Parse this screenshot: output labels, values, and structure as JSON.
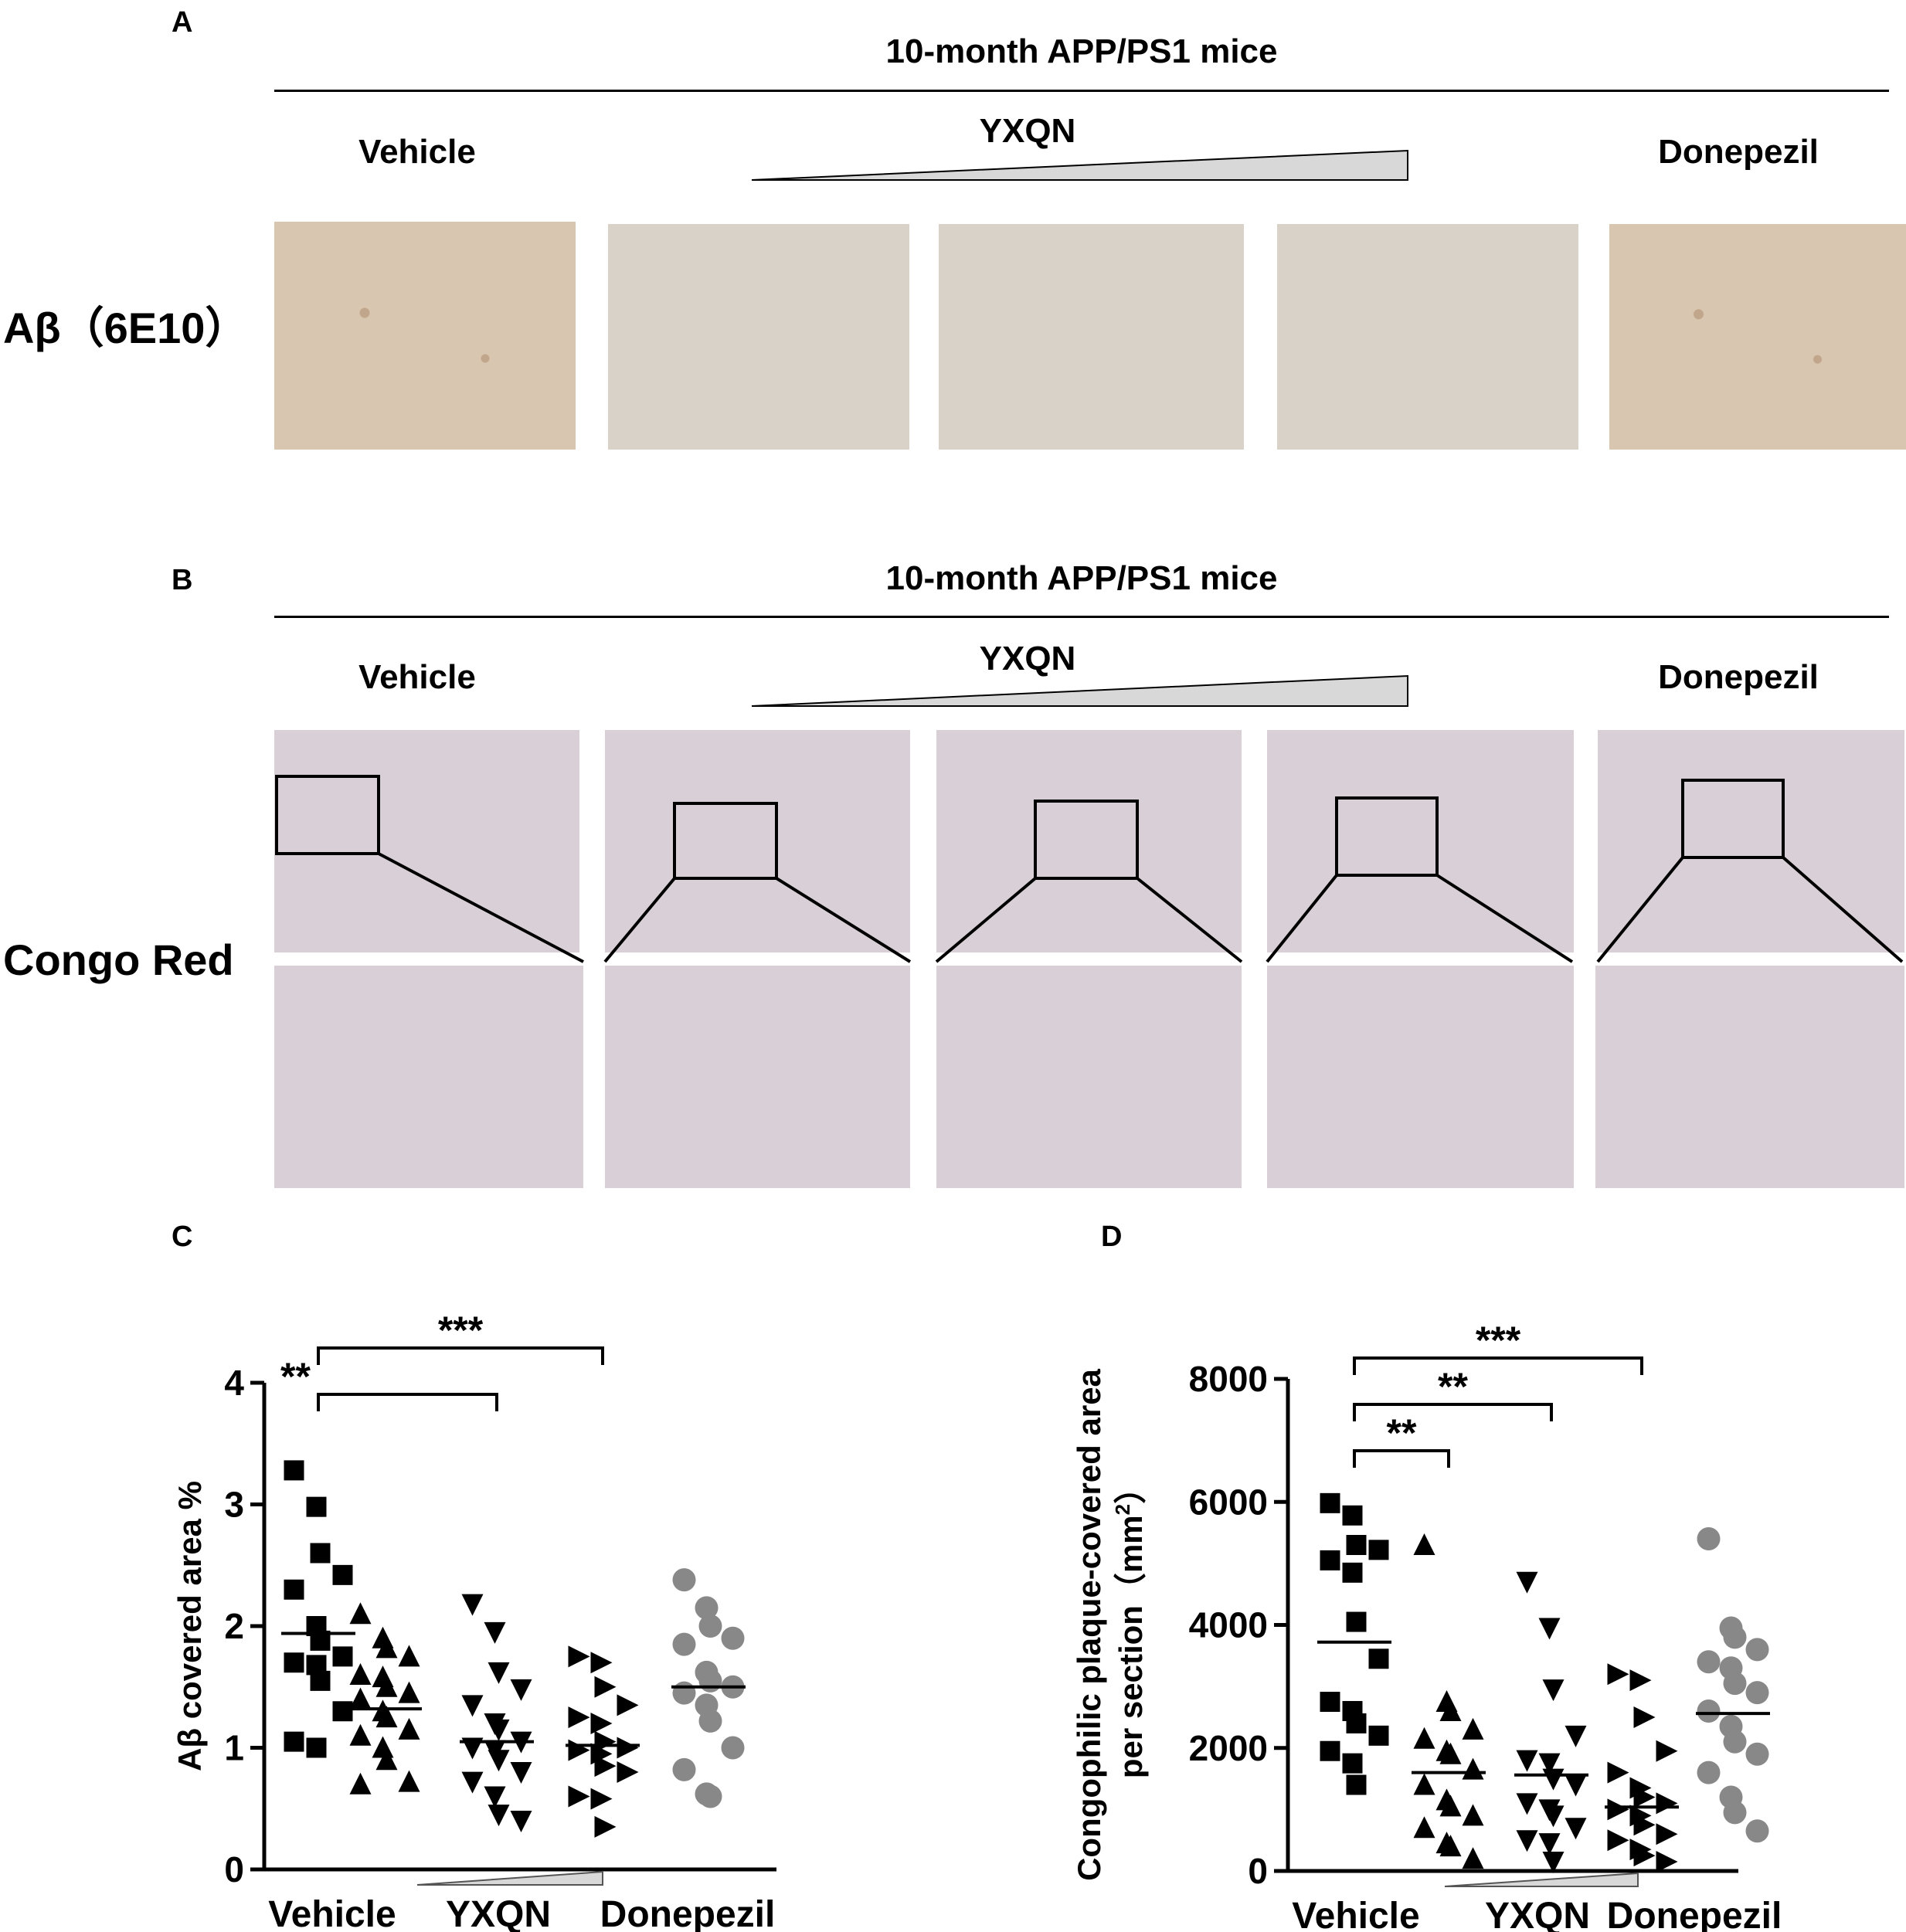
{
  "panel_a": {
    "letter": "A",
    "header": "10-month APP/PS1 mice",
    "groups": {
      "vehicle": "Vehicle",
      "yxqn": "YXQN",
      "donepezil": "Donepezil"
    },
    "row_label": "Aβ（6E10）"
  },
  "panel_b": {
    "letter": "B",
    "header": "10-month APP/PS1 mice",
    "groups": {
      "vehicle": "Vehicle",
      "yxqn": "YXQN",
      "donepezil": "Donepezil"
    },
    "row_label": "Congo Red"
  },
  "chart_data": [
    {
      "letter": "C",
      "type": "scatter",
      "title": "",
      "ylabel": "Aβ covered area %",
      "xlabel": "",
      "categories": [
        "Vehicle",
        "YXQN",
        "YXQN",
        "YXQN",
        "Donepezil"
      ],
      "ylim": [
        0,
        4
      ],
      "yticks": [
        0,
        1,
        2,
        3,
        4
      ],
      "grid": false,
      "legend": "none",
      "colors": {
        "black": "#000000",
        "grey": "#888888"
      },
      "series": [
        {
          "marker": "square",
          "color": "#000000",
          "mean": 1.94,
          "values": [
            3.28,
            2.98,
            2.6,
            2.42,
            2.3,
            2.0,
            1.88,
            1.75,
            1.7,
            1.68,
            1.55,
            1.3,
            1.05,
            1.0
          ]
        },
        {
          "marker": "triangle-up",
          "color": "#000000",
          "mean": 1.32,
          "values": [
            2.1,
            1.9,
            1.82,
            1.75,
            1.6,
            1.58,
            1.5,
            1.45,
            1.4,
            1.3,
            1.25,
            1.15,
            1.1,
            1.0,
            0.9,
            0.72,
            0.7
          ]
        },
        {
          "marker": "triangle-down",
          "color": "#000000",
          "mean": 1.05,
          "values": [
            2.18,
            1.95,
            1.62,
            1.48,
            1.35,
            1.2,
            1.15,
            1.05,
            1.0,
            0.98,
            0.9,
            0.8,
            0.72,
            0.6,
            0.45,
            0.4
          ]
        },
        {
          "marker": "triangle-right",
          "color": "#000000",
          "mean": 1.02,
          "values": [
            1.75,
            1.7,
            1.5,
            1.35,
            1.25,
            1.2,
            1.05,
            1.0,
            0.98,
            0.95,
            0.85,
            0.8,
            0.6,
            0.58,
            0.35
          ]
        },
        {
          "marker": "circle",
          "color": "#888888",
          "mean": 1.5,
          "values": [
            2.38,
            2.15,
            2.0,
            1.9,
            1.85,
            1.62,
            1.55,
            1.5,
            1.45,
            1.35,
            1.22,
            1.0,
            0.82,
            0.62,
            0.6
          ]
        }
      ],
      "significance": [
        {
          "from": 0,
          "to": 3,
          "label": "***"
        },
        {
          "from": 0,
          "to": 2,
          "label": "**"
        }
      ]
    },
    {
      "letter": "D",
      "type": "scatter",
      "title": "",
      "ylabel": "Congophilic plaque-covered area per section（mm²）",
      "ylabel_line1": "Congophilic plaque-covered area",
      "ylabel_line2": "per section（mm",
      "ylabel_sup": "2",
      "ylabel_end": "）",
      "xlabel": "",
      "categories": [
        "Vehicle",
        "YXQN",
        "YXQN",
        "YXQN",
        "Donepezil"
      ],
      "ylim": [
        0,
        8000
      ],
      "yticks": [
        0,
        2000,
        4000,
        6000,
        8000
      ],
      "grid": false,
      "legend": "none",
      "colors": {
        "black": "#000000",
        "grey": "#888888"
      },
      "series": [
        {
          "marker": "square",
          "color": "#000000",
          "mean": 3720,
          "values": [
            5980,
            5780,
            5300,
            5220,
            5050,
            4850,
            4050,
            3450,
            2750,
            2600,
            2400,
            2200,
            1950,
            1750,
            1400
          ]
        },
        {
          "marker": "triangle-up",
          "color": "#000000",
          "mean": 1600,
          "values": [
            5300,
            2750,
            2600,
            2300,
            2150,
            1950,
            1900,
            1650,
            1400,
            1150,
            1050,
            900,
            700,
            450,
            400,
            200
          ]
        },
        {
          "marker": "triangle-down",
          "color": "#000000",
          "mean": 1560,
          "values": [
            4700,
            3950,
            2950,
            2200,
            1800,
            1750,
            1500,
            1400,
            1100,
            1000,
            900,
            700,
            500,
            450,
            150
          ]
        },
        {
          "marker": "triangle-right",
          "color": "#000000",
          "mean": 1040,
          "values": [
            3200,
            3100,
            2500,
            1950,
            1600,
            1350,
            1200,
            1100,
            1000,
            900,
            750,
            600,
            500,
            350,
            250,
            150
          ]
        },
        {
          "marker": "circle",
          "color": "#888888",
          "mean": 2560,
          "values": [
            5400,
            3950,
            3800,
            3600,
            3400,
            3300,
            3050,
            2900,
            2600,
            2350,
            2100,
            1900,
            1600,
            1200,
            950,
            650
          ]
        }
      ],
      "significance": [
        {
          "from": 0,
          "to": 3,
          "label": "***"
        },
        {
          "from": 0,
          "to": 2,
          "label": "**"
        },
        {
          "from": 0,
          "to": 1,
          "label": "**"
        }
      ]
    }
  ],
  "chart_x_labels": {
    "vehicle": "Vehicle",
    "yxqn": "YXQN",
    "donepezil": "Donepezil"
  }
}
